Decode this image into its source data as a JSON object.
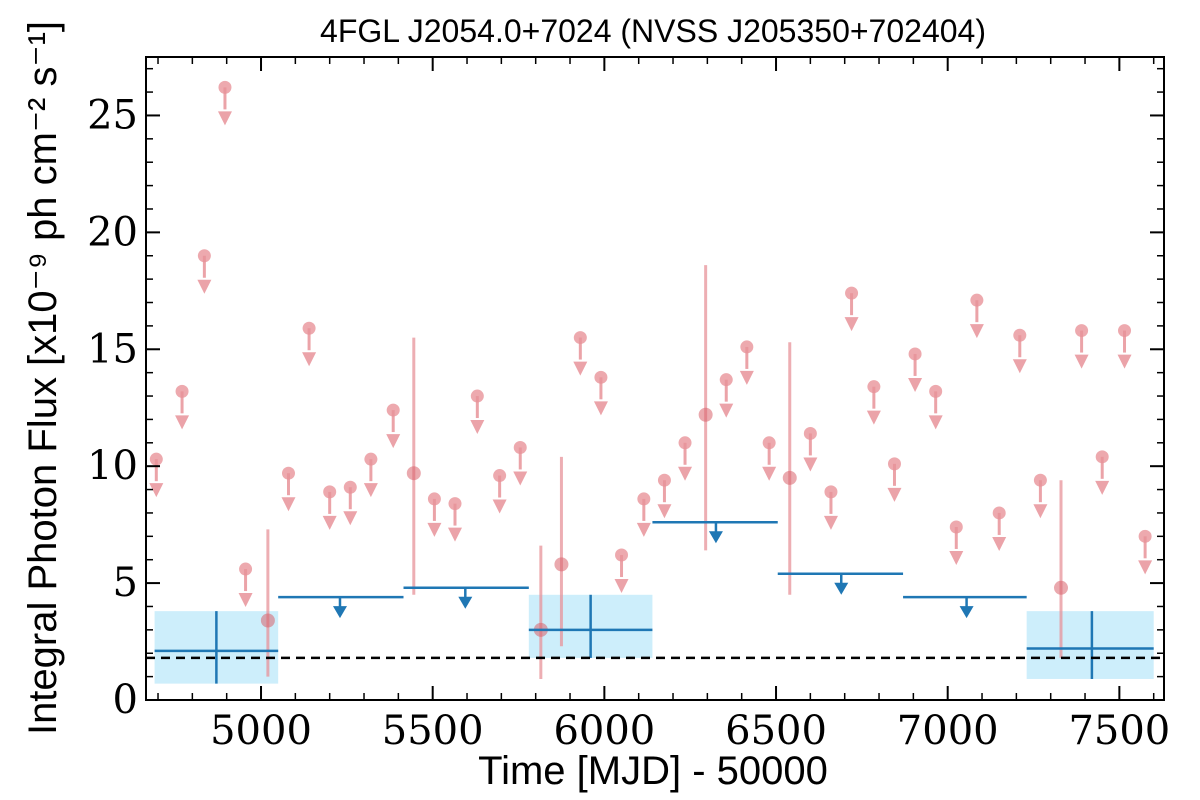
{
  "chart_data": {
    "type": "scatter",
    "title": "4FGL J2054.0+7024 (NVSS J205350+702404)",
    "xlabel": "Time [MJD] - 50000",
    "ylabel": "Integral Photon Flux [x10⁻⁹ ph cm⁻² s⁻¹]",
    "xlim": [
      4665,
      7630
    ],
    "ylim": [
      0,
      27.5
    ],
    "x_ticks": [
      5000,
      5500,
      6000,
      6500,
      7000,
      7500
    ],
    "y_ticks": [
      0,
      5,
      10,
      15,
      20,
      25
    ],
    "grid": false,
    "reference_line": {
      "value": 1.8,
      "style": "dashed"
    },
    "colors": {
      "short_bins": "#e8939a",
      "long_bins": "#1f77b4",
      "long_band": "#cdeefb",
      "ref_line": "#000000"
    },
    "short_bin_upper_limits": [
      {
        "x": 4695,
        "y": 10.3
      },
      {
        "x": 4770,
        "y": 13.2
      },
      {
        "x": 4835,
        "y": 19.0
      },
      {
        "x": 4895,
        "y": 26.2
      },
      {
        "x": 4955,
        "y": 5.6
      },
      {
        "x": 5080,
        "y": 9.7
      },
      {
        "x": 5140,
        "y": 15.9
      },
      {
        "x": 5200,
        "y": 8.9
      },
      {
        "x": 5260,
        "y": 9.1
      },
      {
        "x": 5320,
        "y": 10.3
      },
      {
        "x": 5385,
        "y": 12.4
      },
      {
        "x": 5505,
        "y": 8.6
      },
      {
        "x": 5565,
        "y": 8.4
      },
      {
        "x": 5630,
        "y": 13.0
      },
      {
        "x": 5695,
        "y": 9.6
      },
      {
        "x": 5755,
        "y": 10.8
      },
      {
        "x": 5930,
        "y": 15.5
      },
      {
        "x": 5990,
        "y": 13.8
      },
      {
        "x": 6050,
        "y": 6.2
      },
      {
        "x": 6115,
        "y": 8.6
      },
      {
        "x": 6175,
        "y": 9.4
      },
      {
        "x": 6235,
        "y": 11.0
      },
      {
        "x": 6355,
        "y": 13.7
      },
      {
        "x": 6415,
        "y": 15.1
      },
      {
        "x": 6480,
        "y": 11.0
      },
      {
        "x": 6600,
        "y": 11.4
      },
      {
        "x": 6660,
        "y": 8.9
      },
      {
        "x": 6720,
        "y": 17.4
      },
      {
        "x": 6785,
        "y": 13.4
      },
      {
        "x": 6845,
        "y": 10.1
      },
      {
        "x": 6905,
        "y": 14.8
      },
      {
        "x": 6965,
        "y": 13.2
      },
      {
        "x": 7025,
        "y": 7.4
      },
      {
        "x": 7085,
        "y": 17.1
      },
      {
        "x": 7150,
        "y": 8.0
      },
      {
        "x": 7210,
        "y": 15.6
      },
      {
        "x": 7270,
        "y": 9.4
      },
      {
        "x": 7390,
        "y": 15.8
      },
      {
        "x": 7450,
        "y": 10.4
      },
      {
        "x": 7515,
        "y": 15.8
      },
      {
        "x": 7575,
        "y": 7.0
      }
    ],
    "short_bin_detections": [
      {
        "x": 5020,
        "y": 3.4,
        "ylo": 1.0,
        "yhi": 7.3
      },
      {
        "x": 5445,
        "y": 9.7,
        "ylo": 4.5,
        "yhi": 15.5
      },
      {
        "x": 5815,
        "y": 3.0,
        "ylo": 0.9,
        "yhi": 6.6
      },
      {
        "x": 5875,
        "y": 5.8,
        "ylo": 2.3,
        "yhi": 10.4
      },
      {
        "x": 6295,
        "y": 12.2,
        "ylo": 6.4,
        "yhi": 18.6
      },
      {
        "x": 6540,
        "y": 9.5,
        "ylo": 4.5,
        "yhi": 15.3
      },
      {
        "x": 7330,
        "y": 4.8,
        "ylo": 1.8,
        "yhi": 9.4
      }
    ],
    "long_bin_detections": [
      {
        "x": 4870,
        "xlo": 4690,
        "xhi": 5050,
        "y": 2.1,
        "ylo": 0.7,
        "yhi": 3.8
      },
      {
        "x": 5960,
        "xlo": 5780,
        "xhi": 6140,
        "y": 3.0,
        "ylo": 1.8,
        "yhi": 4.5
      },
      {
        "x": 7420,
        "xlo": 7230,
        "xhi": 7600,
        "y": 2.2,
        "ylo": 0.9,
        "yhi": 3.8
      }
    ],
    "long_bin_upper_limits": [
      {
        "x": 5230,
        "xlo": 5050,
        "xhi": 5415,
        "y": 4.4
      },
      {
        "x": 5595,
        "xlo": 5415,
        "xhi": 5780,
        "y": 4.8
      },
      {
        "x": 6325,
        "xlo": 6140,
        "xhi": 6505,
        "y": 7.6
      },
      {
        "x": 6690,
        "xlo": 6505,
        "xhi": 6870,
        "y": 5.4
      },
      {
        "x": 7055,
        "xlo": 6870,
        "xhi": 7230,
        "y": 4.4
      }
    ]
  }
}
